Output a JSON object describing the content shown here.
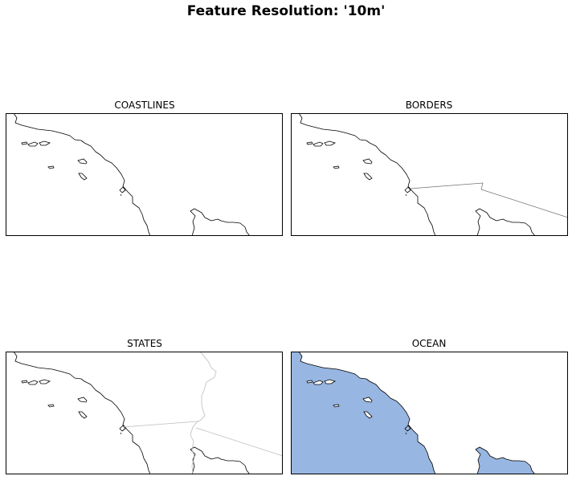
{
  "figure": {
    "title": "Feature Resolution: '10m'"
  },
  "panels": [
    {
      "title": "COASTLINES"
    },
    {
      "title": "BORDERS"
    },
    {
      "title": "STATES"
    },
    {
      "title": "OCEAN"
    }
  ],
  "colors": {
    "ocean": "#97b6e1",
    "coastline": "#000000",
    "borders": "#6e6e6e",
    "states": "#bcbcbc"
  }
}
